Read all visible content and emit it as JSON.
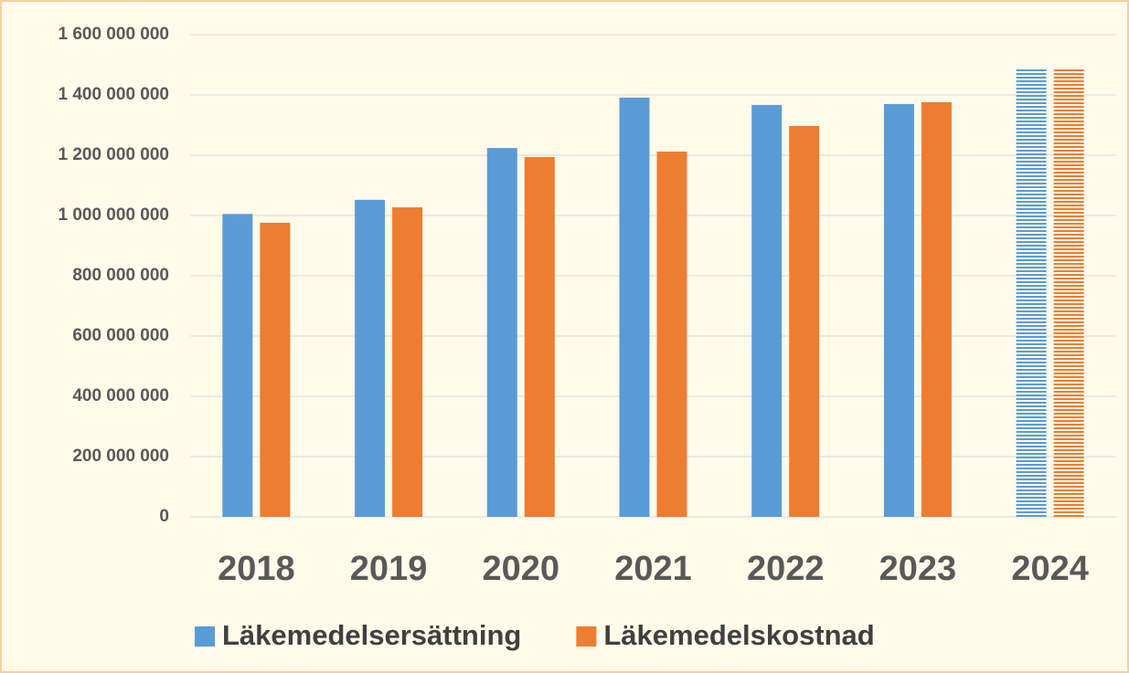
{
  "chart_data": {
    "type": "bar",
    "categories": [
      "2018",
      "2019",
      "2020",
      "2021",
      "2022",
      "2023",
      "2024"
    ],
    "series": [
      {
        "name": "Läkemedelsersättning",
        "color": "#5b9bd5",
        "values": [
          1005000000,
          1052000000,
          1224000000,
          1391000000,
          1367000000,
          1370000000,
          1488000000
        ]
      },
      {
        "name": "Läkemedelskostnad",
        "color": "#ed7d31",
        "values": [
          976000000,
          1027000000,
          1194000000,
          1212000000,
          1297000000,
          1376000000,
          1488000000
        ]
      }
    ],
    "striped": [
      false,
      false,
      false,
      false,
      false,
      false,
      true
    ],
    "ylim": [
      0,
      1600000000
    ],
    "yticks": [
      0,
      {
        "value": 200000000,
        "label": "200 000 000"
      },
      {
        "value": 400000000,
        "label": "400 000 000"
      },
      {
        "value": 600000000,
        "label": "600 000 000"
      },
      {
        "value": 800000000,
        "label": "800 000 000"
      },
      {
        "value": 1000000000,
        "label": "1 000 000 000"
      },
      {
        "value": 1200000000,
        "label": "1 200 000 000"
      },
      {
        "value": 1400000000,
        "label": "1 400 000 000"
      },
      {
        "value": 1600000000,
        "label": "1 600 000 000"
      }
    ],
    "grid": true,
    "legend": "bottom"
  }
}
